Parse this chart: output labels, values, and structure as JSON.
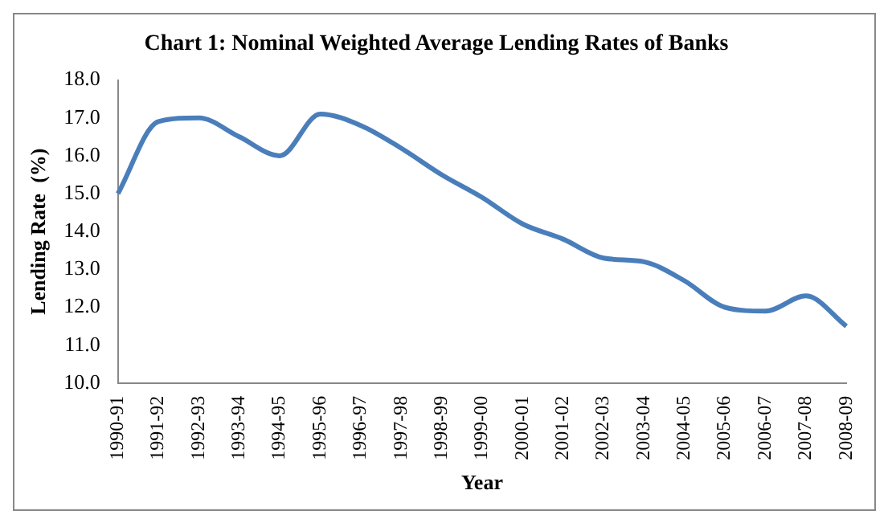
{
  "chart_data": {
    "type": "line",
    "title": "Chart 1: Nominal Weighted Average Lending Rates of Banks",
    "xlabel": "Year",
    "ylabel": "Lending Rate  (%)",
    "categories": [
      "1990-91",
      "1991-92",
      "1992-93",
      "1993-94",
      "1994-95",
      "1995-96",
      "1996-97",
      "1997-98",
      "1998-99",
      "1999-00",
      "2000-01",
      "2001-02",
      "2002-03",
      "2003-04",
      "2004-05",
      "2005-06",
      "2006-07",
      "2007-08",
      "2008-09"
    ],
    "series": [
      {
        "color": "#4a7ebb",
        "values": [
          15.0,
          16.9,
          17.0,
          16.5,
          16.0,
          17.1,
          16.8,
          16.2,
          15.5,
          14.9,
          14.2,
          13.8,
          13.3,
          13.2,
          12.7,
          12.0,
          11.9,
          12.3,
          11.5
        ]
      }
    ],
    "ylim": [
      10,
      18
    ],
    "yticks": [
      {
        "value": 10,
        "label": "10.0"
      },
      {
        "value": 11,
        "label": "11.0"
      },
      {
        "value": 12,
        "label": "12.0"
      },
      {
        "value": 13,
        "label": "13.0"
      },
      {
        "value": 14,
        "label": "14.0"
      },
      {
        "value": 15,
        "label": "15.0"
      },
      {
        "value": 16,
        "label": "16.0"
      },
      {
        "value": 17,
        "label": "17.0"
      },
      {
        "value": 18,
        "label": "18.0"
      }
    ],
    "grid": false,
    "legend": false,
    "marker": "none",
    "line_style": "solid"
  }
}
